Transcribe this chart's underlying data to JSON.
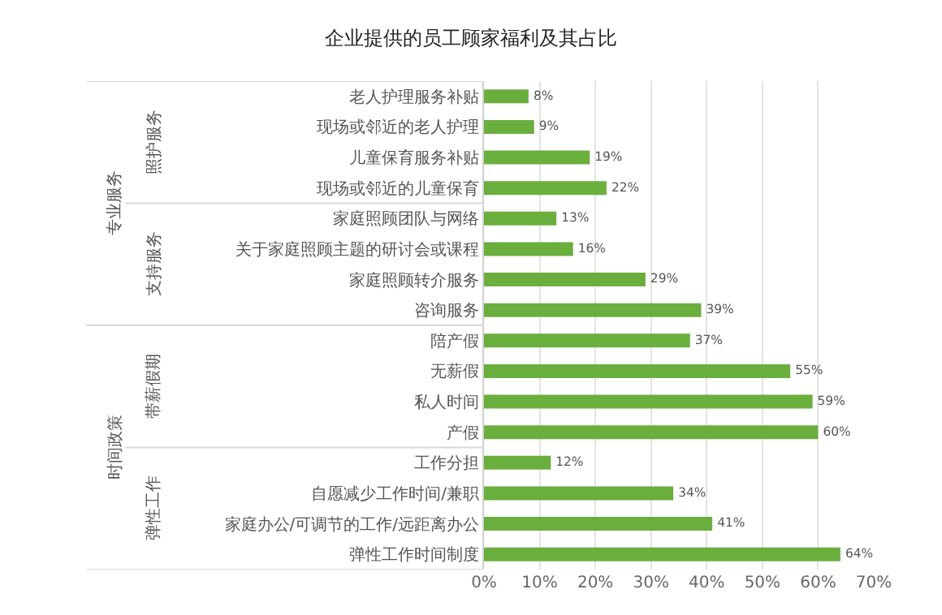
{
  "chart_data": {
    "type": "bar",
    "orientation": "horizontal",
    "title": "企业提供的员工顾家福利及其占比",
    "categories": [
      "老人护理服务补贴",
      "现场或邻近的老人护理",
      "儿童保育服务补贴",
      "现场或邻近的儿童保育",
      "家庭照顾团队与网络",
      "关于家庭照顾主题的研讨会或课程",
      "家庭照顾转介服务",
      "咨询服务",
      "陪产假",
      "无薪假",
      "私人时间",
      "产假",
      "工作分担",
      "自愿减少工作时间/兼职",
      "家庭办公/可调节的工作/远距离办公",
      "弹性工作时间制度"
    ],
    "values": [
      8,
      9,
      19,
      22,
      13,
      16,
      29,
      39,
      37,
      55,
      59,
      60,
      12,
      34,
      41,
      64
    ],
    "value_labels": [
      "8%",
      "9%",
      "19%",
      "22%",
      "13%",
      "16%",
      "29%",
      "39%",
      "37%",
      "55%",
      "59%",
      "60%",
      "12%",
      "34%",
      "41%",
      "64%"
    ],
    "color": "#6aae3e",
    "xlim": [
      0,
      70
    ],
    "xticks": [
      {
        "value": 0,
        "label": "0%"
      },
      {
        "value": 10,
        "label": "10%"
      },
      {
        "value": 20,
        "label": "20%"
      },
      {
        "value": 30,
        "label": "30%"
      },
      {
        "value": 40,
        "label": "40%"
      },
      {
        "value": 50,
        "label": "50%"
      },
      {
        "value": 60,
        "label": "60%"
      },
      {
        "value": 70,
        "label": "70%"
      }
    ],
    "grid": "x",
    "annotations": [
      "专业服务",
      "照护服务",
      "支持服务",
      "时间政策",
      "带薪假期",
      "弹性工作"
    ]
  }
}
